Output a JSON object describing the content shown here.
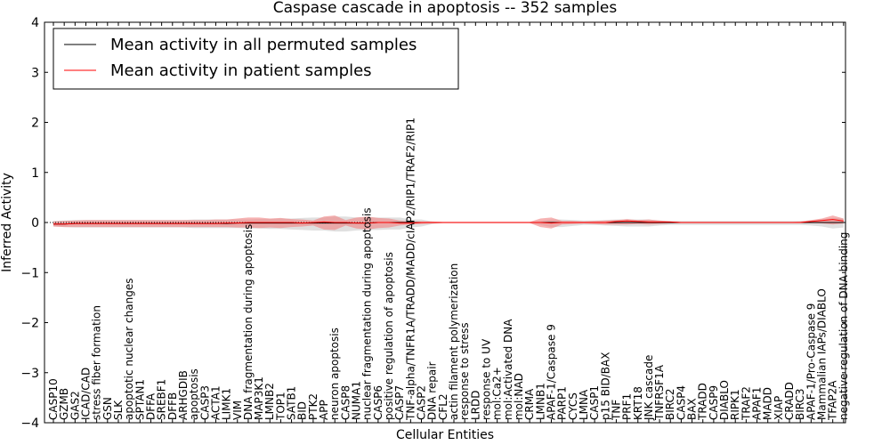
{
  "chart_data": {
    "type": "line",
    "title": "Caspase cascade in apoptosis -- 352 samples",
    "xlabel": "Cellular Entities",
    "ylabel": "Inferred Activity",
    "ylim": [
      -4,
      4
    ],
    "yticks": [
      "−4",
      "−3",
      "−2",
      "−1",
      "0",
      "1",
      "2",
      "3",
      "4"
    ],
    "legend_position": "top-left",
    "categories": [
      "CASP10",
      "GZMB",
      "GAS2",
      "ICAD/CAD",
      "stress fiber formation",
      "GSN",
      "SLK",
      "apoptotic nuclear changes",
      "SPTAN1",
      "DFFA",
      "SREBF1",
      "DFFB",
      "ARHGDIB",
      "apoptosis",
      "CASP3",
      "ACTA1",
      "LIMK1",
      "VIM",
      "DNA fragmentation during apoptosis",
      "MAP3K1",
      "LMNB2",
      "TOP1",
      "SATB1",
      "BID",
      "PTK2",
      "APP",
      "neuron apoptosis",
      "CASP8",
      "NUMA1",
      "nuclear fragmentation during apoptosis",
      "CASP6",
      "positive regulation of apoptosis",
      "CASP7",
      "TNF-alpha/TNFR1A/TRADD/MADD/cIAP2/RIP1/TRAF2/RIP1",
      "CASP2",
      "DNA repair",
      "CFL2",
      "actin filament polymerization",
      "response to stress",
      "LRDD",
      "response to UV",
      "mol:Ca2+",
      "mol:Activated DNA",
      "mol:NAD",
      "CRMA",
      "LMNB1",
      "APAF-1/Caspase 9",
      "PARP1",
      "CYCS",
      "LMNA",
      "CASP1",
      "p15 BID/BAX",
      "TNF",
      "PRF1",
      "KRT18",
      "JNK cascade",
      "TNFRSF1A",
      "BIRC2",
      "CASP4",
      "BAX",
      "TRADD",
      "CASP9",
      "DIABLO",
      "RIPK1",
      "TRAF2",
      "APAF1",
      "MADD",
      "XIAP",
      "CRADD",
      "BIRC3",
      "APAF-1/Pro-Caspase 9",
      "Mammalian IAPs/DIABLO",
      "TFAP2A",
      "negative regulation of DNA binding"
    ],
    "series": [
      {
        "name": "Mean activity in all permuted samples",
        "color": "#000000",
        "values": [
          -0.03,
          -0.03,
          -0.02,
          -0.02,
          -0.02,
          -0.02,
          -0.02,
          -0.02,
          -0.02,
          -0.02,
          -0.02,
          -0.02,
          -0.02,
          -0.02,
          -0.02,
          -0.02,
          -0.02,
          -0.01,
          -0.01,
          -0.01,
          -0.01,
          -0.01,
          -0.01,
          -0.01,
          -0.01,
          -0.01,
          -0.01,
          -0.01,
          -0.01,
          -0.01,
          0,
          0,
          0,
          0,
          0,
          0,
          0,
          0,
          0,
          0,
          0,
          0,
          0,
          0,
          0,
          0,
          0,
          0,
          0,
          0,
          0,
          0,
          0,
          0,
          0,
          0,
          0,
          0,
          0,
          0,
          0,
          0,
          0,
          0,
          0,
          0,
          0,
          0,
          0,
          0,
          0,
          0,
          0,
          0
        ],
        "band": {
          "color": "#cccccc",
          "upper": [
            0.03,
            0.04,
            0.05,
            0.05,
            0.05,
            0.05,
            0.05,
            0.05,
            0.05,
            0.05,
            0.05,
            0.05,
            0.05,
            0.06,
            0.06,
            0.06,
            0.06,
            0.06,
            0.06,
            0.07,
            0.07,
            0.08,
            0.08,
            0.09,
            0.1,
            0.1,
            0.12,
            0.12,
            0.1,
            0.1,
            0.1,
            0.1,
            0.1,
            0.06,
            0.06,
            0.02,
            0.01,
            0.01,
            0.01,
            0.01,
            0.01,
            0.01,
            0.01,
            0.01,
            0.01,
            0.03,
            0.06,
            0.06,
            0.05,
            0.04,
            0.04,
            0.05,
            0.06,
            0.06,
            0.06,
            0.06,
            0.04,
            0.03,
            0.03,
            0.03,
            0.03,
            0.03,
            0.03,
            0.03,
            0.03,
            0.03,
            0.03,
            0.03,
            0.03,
            0.03,
            0.04,
            0.06,
            0.09,
            0.08
          ],
          "lower": [
            -0.08,
            -0.09,
            -0.1,
            -0.1,
            -0.1,
            -0.1,
            -0.1,
            -0.1,
            -0.1,
            -0.1,
            -0.1,
            -0.1,
            -0.1,
            -0.11,
            -0.11,
            -0.11,
            -0.11,
            -0.11,
            -0.12,
            -0.12,
            -0.13,
            -0.13,
            -0.14,
            -0.15,
            -0.16,
            -0.16,
            -0.18,
            -0.18,
            -0.16,
            -0.15,
            -0.15,
            -0.14,
            -0.14,
            -0.1,
            -0.08,
            -0.03,
            -0.01,
            -0.01,
            -0.01,
            -0.01,
            -0.01,
            -0.01,
            -0.01,
            -0.01,
            -0.01,
            -0.05,
            -0.09,
            -0.09,
            -0.07,
            -0.05,
            -0.05,
            -0.06,
            -0.07,
            -0.08,
            -0.08,
            -0.08,
            -0.06,
            -0.05,
            -0.05,
            -0.05,
            -0.05,
            -0.05,
            -0.05,
            -0.05,
            -0.05,
            -0.05,
            -0.05,
            -0.05,
            -0.05,
            -0.05,
            -0.06,
            -0.08,
            -0.12,
            -0.1
          ]
        }
      },
      {
        "name": "Mean activity in patient samples",
        "color": "#ff0000",
        "values": [
          -0.03,
          -0.03,
          -0.02,
          -0.02,
          -0.02,
          -0.02,
          -0.02,
          -0.02,
          -0.02,
          -0.02,
          -0.02,
          -0.02,
          -0.02,
          -0.02,
          -0.02,
          -0.02,
          -0.01,
          -0.01,
          0,
          0,
          0,
          0,
          0,
          -0.01,
          0,
          0.01,
          0,
          0,
          -0.01,
          -0.01,
          0,
          0,
          -0.01,
          -0.01,
          0,
          0,
          0,
          0,
          0,
          0,
          0,
          0,
          0,
          0,
          0,
          0,
          -0.01,
          0,
          0,
          0,
          0,
          0,
          0.02,
          0.03,
          0.02,
          0.01,
          0.01,
          0.01,
          0,
          0,
          0,
          0,
          0,
          0,
          0,
          0,
          0,
          0,
          0,
          0,
          0.02,
          0.04,
          0.06,
          0.03
        ],
        "band": {
          "color": "#f08080",
          "upper": [
            0.02,
            0.03,
            0.04,
            0.05,
            0.05,
            0.05,
            0.05,
            0.05,
            0.05,
            0.05,
            0.05,
            0.05,
            0.05,
            0.05,
            0.05,
            0.06,
            0.06,
            0.08,
            0.1,
            0.1,
            0.08,
            0.09,
            0.07,
            0.06,
            0.04,
            0.12,
            0.14,
            0.05,
            0.1,
            0.12,
            0.09,
            0.08,
            0.04,
            0.02,
            0.02,
            0.02,
            0.01,
            0.01,
            0.01,
            0.01,
            0.01,
            0.01,
            0.01,
            0.01,
            0.01,
            0.08,
            0.1,
            0.03,
            0.03,
            0.02,
            0.03,
            0.04,
            0.05,
            0.07,
            0.05,
            0.06,
            0.04,
            0.02,
            0.01,
            0.01,
            0.01,
            0.01,
            0.01,
            0.01,
            0.01,
            0.01,
            0.01,
            0.01,
            0.01,
            0.02,
            0.05,
            0.08,
            0.14,
            0.08
          ],
          "lower": [
            -0.08,
            -0.09,
            -0.09,
            -0.09,
            -0.09,
            -0.09,
            -0.09,
            -0.09,
            -0.09,
            -0.09,
            -0.09,
            -0.09,
            -0.09,
            -0.09,
            -0.09,
            -0.09,
            -0.09,
            -0.1,
            -0.1,
            -0.11,
            -0.1,
            -0.11,
            -0.09,
            -0.08,
            -0.06,
            -0.14,
            -0.15,
            -0.06,
            -0.12,
            -0.14,
            -0.11,
            -0.1,
            -0.06,
            -0.04,
            -0.03,
            -0.02,
            -0.01,
            -0.01,
            -0.01,
            -0.01,
            -0.01,
            -0.01,
            -0.01,
            -0.01,
            -0.01,
            -0.09,
            -0.12,
            -0.04,
            -0.03,
            -0.02,
            -0.03,
            -0.04,
            -0.04,
            -0.04,
            -0.03,
            -0.04,
            -0.03,
            -0.02,
            -0.01,
            -0.01,
            -0.01,
            -0.01,
            -0.01,
            -0.01,
            -0.01,
            -0.01,
            -0.01,
            -0.01,
            -0.01,
            -0.01,
            -0.01,
            -0.02,
            -0.04,
            -0.02
          ]
        }
      }
    ]
  }
}
